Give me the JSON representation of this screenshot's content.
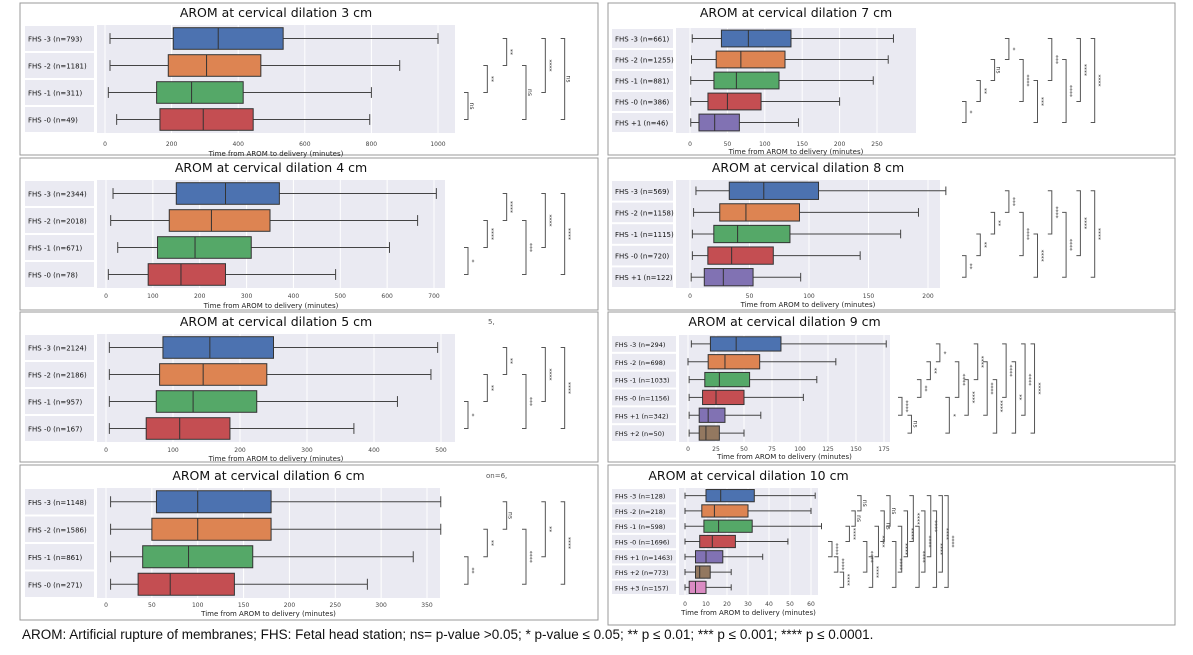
{
  "colors": {
    "FHS -3": "#4c72b0",
    "FHS -2": "#dd8452",
    "FHS -1": "#55a868",
    "FHS -0": "#c44e52",
    "FHS +1": "#8172b3",
    "FHS +2": "#937860",
    "FHS +3": "#da8bc3",
    "plot_bg": "#eaeaf2"
  },
  "chart_data": [
    {
      "type": "box",
      "title": "AROM at cervical dilation 3 cm",
      "xlabel": "Time from AROM to delivery (minutes)",
      "ticks": [
        0,
        200,
        400,
        600,
        800,
        1000
      ],
      "groups": [
        {
          "label": "FHS -3 (n=793)",
          "key": "FHS -3",
          "stats": [
            15,
            205,
            340,
            535,
            1000
          ]
        },
        {
          "label": "FHS -2 (n=1181)",
          "key": "FHS -2",
          "stats": [
            15,
            190,
            305,
            468,
            885
          ]
        },
        {
          "label": "FHS -1 (n=311)",
          "key": "FHS -1",
          "stats": [
            10,
            155,
            260,
            415,
            800
          ]
        },
        {
          "label": "FHS -0 (n=49)",
          "key": "FHS -0",
          "stats": [
            35,
            165,
            295,
            445,
            795
          ]
        }
      ],
      "significance": [
        [
          2,
          3,
          "ns"
        ],
        [
          1,
          2,
          "**"
        ],
        [
          0,
          1,
          "**"
        ],
        [
          1,
          3,
          "ns"
        ],
        [
          0,
          2,
          "****"
        ],
        [
          0,
          3,
          "ns"
        ]
      ]
    },
    {
      "type": "box",
      "title": "AROM at cervical dilation 4 cm",
      "xlabel": "Time from AROM to delivery (minutes)",
      "ticks": [
        0,
        100,
        200,
        300,
        400,
        500,
        600,
        700
      ],
      "groups": [
        {
          "label": "FHS -3 (n=2344)",
          "key": "FHS -3",
          "stats": [
            15,
            150,
            255,
            370,
            705
          ]
        },
        {
          "label": "FHS -2 (n=2018)",
          "key": "FHS -2",
          "stats": [
            10,
            135,
            225,
            350,
            665
          ]
        },
        {
          "label": "FHS -1 (n=671)",
          "key": "FHS -1",
          "stats": [
            25,
            110,
            190,
            310,
            605
          ]
        },
        {
          "label": "FHS -0 (n=78)",
          "key": "FHS -0",
          "stats": [
            5,
            90,
            160,
            255,
            490
          ]
        }
      ],
      "significance": [
        [
          2,
          3,
          "*"
        ],
        [
          1,
          2,
          "****"
        ],
        [
          0,
          1,
          "****"
        ],
        [
          1,
          3,
          "***"
        ],
        [
          0,
          2,
          "****"
        ],
        [
          0,
          3,
          "****"
        ]
      ]
    },
    {
      "type": "box",
      "title": "AROM at cervical dilation 5 cm",
      "xlabel": "Time from AROM to delivery (minutes)",
      "ticks": [
        0,
        100,
        200,
        300,
        400,
        500
      ],
      "groups": [
        {
          "label": "FHS -3 (n=2124)",
          "key": "FHS -3",
          "stats": [
            5,
            85,
            155,
            250,
            495
          ]
        },
        {
          "label": "FHS -2 (n=2186)",
          "key": "FHS -2",
          "stats": [
            5,
            80,
            145,
            240,
            485
          ]
        },
        {
          "label": "FHS -1 (n=957)",
          "key": "FHS -1",
          "stats": [
            5,
            75,
            130,
            225,
            435
          ]
        },
        {
          "label": "FHS -0 (n=167)",
          "key": "FHS -0",
          "stats": [
            5,
            60,
            110,
            185,
            370
          ]
        }
      ],
      "significance": [
        [
          2,
          3,
          "*"
        ],
        [
          1,
          2,
          "**"
        ],
        [
          0,
          1,
          "**"
        ],
        [
          1,
          3,
          "***"
        ],
        [
          0,
          2,
          "****"
        ],
        [
          0,
          3,
          "****"
        ]
      ]
    },
    {
      "type": "box",
      "title": "AROM at cervical dilation 6 cm",
      "xlabel": "Time from AROM to delivery (minutes)",
      "ticks": [
        0,
        50,
        100,
        150,
        200,
        250,
        300,
        350
      ],
      "groups": [
        {
          "label": "FHS -3 (n=1148)",
          "key": "FHS -3",
          "stats": [
            5,
            55,
            100,
            180,
            365
          ]
        },
        {
          "label": "FHS -2 (n=1586)",
          "key": "FHS -2",
          "stats": [
            5,
            50,
            100,
            180,
            365
          ]
        },
        {
          "label": "FHS -1 (n=861)",
          "key": "FHS -1",
          "stats": [
            5,
            40,
            90,
            160,
            335
          ]
        },
        {
          "label": "FHS -0 (n=271)",
          "key": "FHS -0",
          "stats": [
            5,
            35,
            70,
            140,
            285
          ]
        }
      ],
      "significance": [
        [
          2,
          3,
          "**"
        ],
        [
          1,
          2,
          "**"
        ],
        [
          0,
          1,
          "ns"
        ],
        [
          1,
          3,
          "****"
        ],
        [
          0,
          2,
          "**"
        ],
        [
          0,
          3,
          "****"
        ]
      ]
    },
    {
      "type": "box",
      "title": "AROM at cervical dilation 7 cm",
      "xlabel": "Time from AROM to delivery (minutes)",
      "ticks": [
        0,
        50,
        100,
        150,
        200,
        250
      ],
      "groups": [
        {
          "label": "FHS -3 (n=661)",
          "key": "FHS -3",
          "stats": [
            3,
            42,
            78,
            135,
            272
          ]
        },
        {
          "label": "FHS -2 (n=1255)",
          "key": "FHS -2",
          "stats": [
            2,
            35,
            68,
            127,
            265
          ]
        },
        {
          "label": "FHS -1 (n=881)",
          "key": "FHS -1",
          "stats": [
            1,
            32,
            62,
            119,
            245
          ]
        },
        {
          "label": "FHS -0 (n=386)",
          "key": "FHS -0",
          "stats": [
            1,
            24,
            50,
            95,
            200
          ]
        },
        {
          "label": "FHS +1 (n=46)",
          "key": "FHS +1",
          "stats": [
            1,
            12,
            33,
            66,
            145
          ]
        }
      ],
      "significance": [
        [
          3,
          4,
          "*"
        ],
        [
          2,
          3,
          "**"
        ],
        [
          1,
          2,
          "ns"
        ],
        [
          0,
          1,
          "*"
        ],
        [
          1,
          3,
          "****"
        ],
        [
          2,
          4,
          "***"
        ],
        [
          0,
          2,
          "***"
        ],
        [
          1,
          4,
          "****"
        ],
        [
          0,
          3,
          "****"
        ],
        [
          0,
          4,
          "****"
        ]
      ]
    },
    {
      "type": "box",
      "title": "AROM at cervical dilation 8 cm",
      "xlabel": "Time from AROM to delivery (minutes)",
      "ticks": [
        0,
        50,
        100,
        150,
        200
      ],
      "groups": [
        {
          "label": "FHS -3 (n=569)",
          "key": "FHS -3",
          "stats": [
            5,
            33,
            62,
            108,
            215
          ]
        },
        {
          "label": "FHS -2 (n=1158)",
          "key": "FHS -2",
          "stats": [
            3,
            25,
            47,
            92,
            192
          ]
        },
        {
          "label": "FHS -1 (n=1115)",
          "key": "FHS -1",
          "stats": [
            2,
            20,
            40,
            84,
            177
          ]
        },
        {
          "label": "FHS -0 (n=720)",
          "key": "FHS -0",
          "stats": [
            2,
            15,
            35,
            70,
            143
          ]
        },
        {
          "label": "FHS +1 (n=122)",
          "key": "FHS +1",
          "stats": [
            1,
            12,
            28,
            53,
            93
          ]
        }
      ],
      "significance": [
        [
          3,
          4,
          "**"
        ],
        [
          2,
          3,
          "**"
        ],
        [
          1,
          2,
          "**"
        ],
        [
          0,
          1,
          "***"
        ],
        [
          1,
          3,
          "****"
        ],
        [
          2,
          4,
          "****"
        ],
        [
          0,
          2,
          "****"
        ],
        [
          1,
          4,
          "****"
        ],
        [
          0,
          3,
          "****"
        ],
        [
          0,
          4,
          "****"
        ]
      ]
    },
    {
      "type": "box",
      "title": "AROM at cervical dilation 9 cm",
      "xlabel": "Time from AROM to delivery (minutes)",
      "ticks": [
        0,
        25,
        50,
        75,
        100,
        125,
        150,
        175
      ],
      "groups": [
        {
          "label": "FHS -3 (n=294)",
          "key": "FHS -3",
          "stats": [
            3,
            20,
            43,
            83,
            177
          ]
        },
        {
          "label": "FHS -2 (n=698)",
          "key": "FHS -2",
          "stats": [
            0,
            18,
            33,
            64,
            132
          ]
        },
        {
          "label": "FHS -1 (n=1033)",
          "key": "FHS -1",
          "stats": [
            1,
            15,
            28,
            55,
            115
          ]
        },
        {
          "label": "FHS -0 (n=1156)",
          "key": "FHS -0",
          "stats": [
            1,
            13,
            25,
            50,
            103
          ]
        },
        {
          "label": "FHS +1 (n=342)",
          "key": "FHS +1",
          "stats": [
            1,
            10,
            18,
            33,
            65
          ]
        },
        {
          "label": "FHS +2 (n=50)",
          "key": "FHS +2",
          "stats": [
            1,
            10,
            16,
            28,
            50
          ]
        }
      ],
      "significance": [
        [
          3,
          4,
          "****"
        ],
        [
          4,
          5,
          "ns"
        ],
        [
          2,
          3,
          "**"
        ],
        [
          1,
          2,
          "**"
        ],
        [
          0,
          1,
          "*"
        ],
        [
          3,
          5,
          "*"
        ],
        [
          1,
          3,
          "****"
        ],
        [
          2,
          4,
          "****"
        ],
        [
          0,
          2,
          "****"
        ],
        [
          1,
          4,
          "****"
        ],
        [
          2,
          5,
          "****"
        ],
        [
          0,
          3,
          "****"
        ],
        [
          1,
          5,
          "**"
        ],
        [
          0,
          4,
          "****"
        ],
        [
          0,
          5,
          "****"
        ]
      ]
    },
    {
      "type": "box",
      "title": "AROM at cervical dilation 10 cm",
      "xlabel": "Time from AROM to delivery (minutes)",
      "ticks": [
        0,
        10,
        20,
        30,
        40,
        50,
        60
      ],
      "groups": [
        {
          "label": "FHS -3 (n=128)",
          "key": "FHS -3",
          "stats": [
            0,
            10,
            17,
            33,
            62
          ]
        },
        {
          "label": "FHS -2 (n=218)",
          "key": "FHS -2",
          "stats": [
            0,
            8,
            14,
            30,
            60
          ]
        },
        {
          "label": "FHS -1 (n=598)",
          "key": "FHS -1",
          "stats": [
            0,
            9,
            16,
            32,
            65
          ]
        },
        {
          "label": "FHS -0 (n=1696)",
          "key": "FHS -0",
          "stats": [
            0,
            7,
            13,
            24,
            49
          ]
        },
        {
          "label": "FHS +1 (n=1463)",
          "key": "FHS +1",
          "stats": [
            0,
            5,
            10,
            18,
            37
          ]
        },
        {
          "label": "FHS +2 (n=773)",
          "key": "FHS +2",
          "stats": [
            0,
            5,
            7,
            12,
            22
          ]
        },
        {
          "label": "FHS +3 (n=157)",
          "key": "FHS +3",
          "stats": [
            0,
            2,
            5,
            10,
            22
          ]
        }
      ],
      "significance": [
        [
          3,
          4,
          "****"
        ],
        [
          4,
          5,
          "****"
        ],
        [
          5,
          6,
          "****"
        ],
        [
          2,
          3,
          "****"
        ],
        [
          1,
          2,
          "ns"
        ],
        [
          0,
          1,
          "ns"
        ],
        [
          3,
          5,
          "****"
        ],
        [
          4,
          6,
          "****"
        ],
        [
          2,
          4,
          "****"
        ],
        [
          1,
          3,
          "ns"
        ],
        [
          0,
          2,
          "ns"
        ],
        [
          3,
          6,
          "****"
        ],
        [
          2,
          5,
          "****"
        ],
        [
          1,
          4,
          "****"
        ],
        [
          0,
          3,
          "****"
        ],
        [
          2,
          6,
          "****"
        ],
        [
          1,
          5,
          "****"
        ],
        [
          0,
          4,
          "****"
        ],
        [
          1,
          6,
          "****"
        ],
        [
          0,
          5,
          "****"
        ],
        [
          0,
          6,
          "****"
        ]
      ]
    }
  ],
  "stray_marks": [
    "5,",
    "on=6,"
  ],
  "footnote": "AROM: Artificial rupture of membranes; FHS: Fetal head station; ns= p-value >0.05; * p-value ≤ 0.05; ** p ≤ 0.01; *** p ≤ 0.001; **** p ≤ 0.0001."
}
